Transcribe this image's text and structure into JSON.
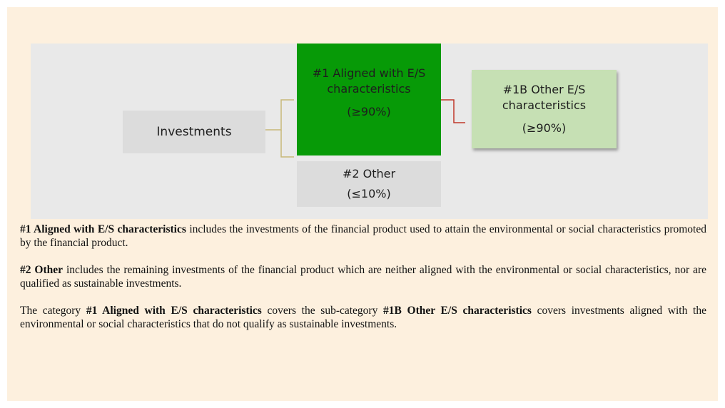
{
  "nodes": [
    {
      "label": "Investments"
    },
    {
      "label": "#1 Aligned with E/S characteristics",
      "share": "(≥90%)"
    },
    {
      "label": "#2 Other",
      "share": "(≤10%)"
    },
    {
      "label": "#1B Other E/S characteristics",
      "share": "(≥90%)"
    }
  ],
  "paragraphs": [
    [
      {
        "text": "#1 Aligned with E/S characteristics",
        "bold": true
      },
      {
        "text": " includes the investments of the financial product used to attain the environmental or social characteristics promoted by the financial product."
      }
    ],
    [
      {
        "text": "#2 Other",
        "bold": true
      },
      {
        "text": " includes the remaining investments of the financial product which are neither aligned with the environmental or social characteristics, nor are qualified as sustainable investments."
      }
    ],
    [
      {
        "text": "The category "
      },
      {
        "text": "#1 Aligned with E/S characteristics",
        "bold": true
      },
      {
        "text": " covers the sub-category "
      },
      {
        "text": "#1B Other E/S characteristics",
        "bold": true
      },
      {
        "text": " covers investments aligned with the environmental or social characteristics that do not qualify as sustainable investments."
      }
    ]
  ]
}
